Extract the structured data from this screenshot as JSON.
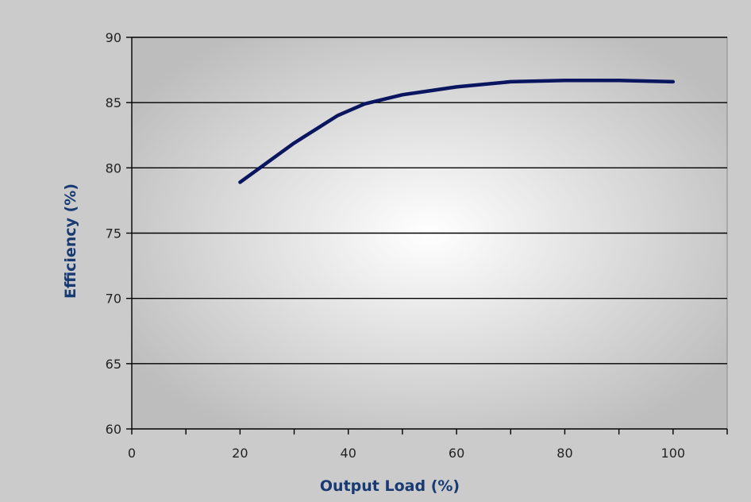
{
  "colors": {
    "background": "#c9c9c9",
    "plot_center": "#ffffff",
    "plot_edge": "#bdbdbd",
    "gridline": "#000000",
    "line": "#0a1560",
    "axis_title": "#173a72"
  },
  "chart_data": {
    "type": "line",
    "title": "",
    "xlabel": "Output Load (%)",
    "ylabel": "Efficiency (%)",
    "xlim": [
      0,
      110
    ],
    "ylim": [
      60,
      90
    ],
    "xticks": [
      "0",
      "20",
      "40",
      "60",
      "80",
      "100"
    ],
    "yticks": [
      "60",
      "65",
      "70",
      "75",
      "80",
      "85",
      "90"
    ],
    "grid": "horizontal",
    "legend": "none",
    "series": [
      {
        "x": [
          20,
          30,
          38,
          43,
          50,
          55,
          60,
          70,
          80,
          90,
          100
        ],
        "y": [
          78.9,
          81.9,
          84.0,
          84.9,
          85.6,
          85.9,
          86.2,
          86.6,
          86.7,
          86.7,
          86.6
        ]
      }
    ]
  }
}
